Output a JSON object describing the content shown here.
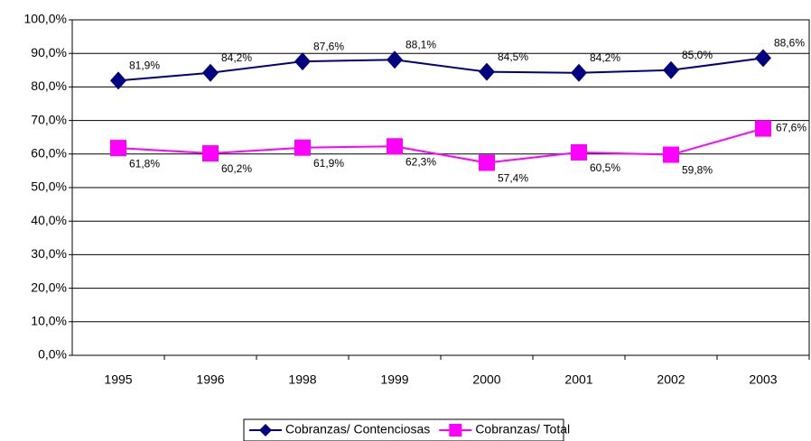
{
  "chart_data": {
    "type": "line",
    "categories": [
      "1995",
      "1996",
      "1998",
      "1999",
      "2000",
      "2001",
      "2002",
      "2003"
    ],
    "series": [
      {
        "name": "Cobranzas/ Contenciosas",
        "color": "#000080",
        "values": [
          81.9,
          84.2,
          87.6,
          88.1,
          84.5,
          84.2,
          85.0,
          88.6
        ],
        "value_labels": [
          "81,9%",
          "84,2%",
          "87,6%",
          "88,1%",
          "84,5%",
          "84,2%",
          "85,0%",
          "88,6%"
        ]
      },
      {
        "name": "Cobranzas/ Total",
        "color": "#ff00ff",
        "values": [
          61.8,
          60.2,
          61.9,
          62.3,
          57.4,
          60.5,
          59.8,
          67.6
        ],
        "value_labels": [
          "61,8%",
          "60,2%",
          "61,9%",
          "62,3%",
          "57,4%",
          "60,5%",
          "59,8%",
          "67,6%"
        ]
      }
    ],
    "ylim": [
      0,
      100
    ],
    "yticks": [
      {
        "value": 0,
        "label": "0,0%"
      },
      {
        "value": 10,
        "label": "10,0%"
      },
      {
        "value": 20,
        "label": "20,0%"
      },
      {
        "value": 30,
        "label": "30,0%"
      },
      {
        "value": 40,
        "label": "40,0%"
      },
      {
        "value": 50,
        "label": "50,0%"
      },
      {
        "value": 60,
        "label": "60,0%"
      },
      {
        "value": 70,
        "label": "70,0%"
      },
      {
        "value": 80,
        "label": "80,0%"
      },
      {
        "value": 90,
        "label": "90,0%"
      },
      {
        "value": 100,
        "label": "100,0%"
      }
    ],
    "grid": true
  }
}
